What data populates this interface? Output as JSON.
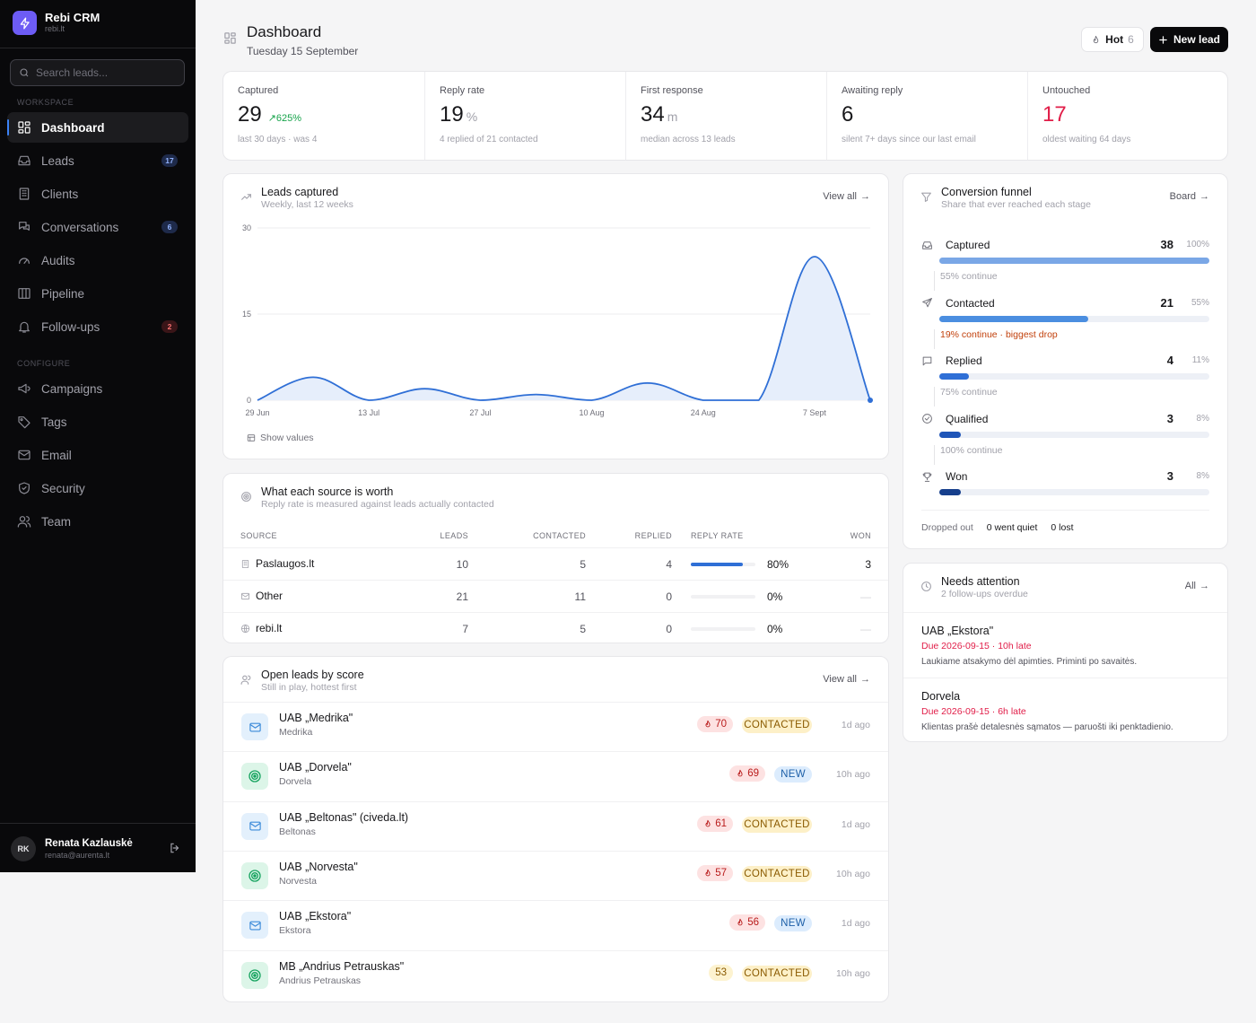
{
  "app": {
    "name": "Rebi CRM",
    "domain": "rebi.lt"
  },
  "search": {
    "placeholder": "Search leads..."
  },
  "sidebar": {
    "workspace_label": "WORKSPACE",
    "configure_label": "CONFIGURE",
    "workspace": [
      {
        "label": "Dashboard",
        "icon": "grid-icon",
        "active": true
      },
      {
        "label": "Leads",
        "icon": "inbox-icon",
        "badge": "17"
      },
      {
        "label": "Clients",
        "icon": "building-icon"
      },
      {
        "label": "Conversations",
        "icon": "chat-icon",
        "badge": "6"
      },
      {
        "label": "Audits",
        "icon": "gauge-icon"
      },
      {
        "label": "Pipeline",
        "icon": "columns-icon"
      },
      {
        "label": "Follow-ups",
        "icon": "bell-icon",
        "badge": "2"
      }
    ],
    "configure": [
      {
        "label": "Campaigns",
        "icon": "megaphone-icon"
      },
      {
        "label": "Tags",
        "icon": "tag-icon"
      },
      {
        "label": "Email",
        "icon": "mail-icon"
      },
      {
        "label": "Security",
        "icon": "shield-icon"
      },
      {
        "label": "Team",
        "icon": "users-icon"
      }
    ]
  },
  "user": {
    "initials": "RK",
    "name": "Renata Kazlauskė",
    "email": "renata@aurenta.lt"
  },
  "header": {
    "title": "Dashboard",
    "date": "Tuesday 15 September",
    "hot_label": "Hot",
    "hot_count": "6",
    "new_lead_label": "New lead"
  },
  "kpis": [
    {
      "label": "Captured",
      "value": "29",
      "trend": "625%",
      "sub": "last 30 days · was 4"
    },
    {
      "label": "Reply rate",
      "value": "19",
      "unit": "%",
      "sub": "4 replied of 21 contacted"
    },
    {
      "label": "First response",
      "value": "34",
      "unit": "m",
      "sub": "median across 13 leads"
    },
    {
      "label": "Awaiting reply",
      "value": "6",
      "sub": "silent 7+ days since our last email"
    },
    {
      "label": "Untouched",
      "value": "17",
      "sub": "oldest waiting 64 days"
    }
  ],
  "leads_chart": {
    "title": "Leads captured",
    "subtitle": "Weekly, last 12 weeks",
    "link": "View all",
    "show_values": "Show values"
  },
  "chart_data": {
    "type": "area",
    "x": [
      "29 Jun",
      "6 Jul",
      "13 Jul",
      "20 Jul",
      "27 Jul",
      "3 Aug",
      "10 Aug",
      "17 Aug",
      "24 Aug",
      "31 Aug",
      "7 Sept",
      "14 Sept"
    ],
    "tick_labels": [
      "29 Jun",
      "13 Jul",
      "27 Jul",
      "10 Aug",
      "24 Aug",
      "7 Sept"
    ],
    "series": [
      {
        "values": [
          0,
          4,
          0,
          2,
          0,
          1,
          0,
          3,
          0,
          0,
          25,
          0
        ]
      }
    ],
    "yticks": [
      0,
      15,
      30
    ],
    "ylim": [
      0,
      30
    ],
    "grid": true,
    "color": "#2f6fd6"
  },
  "funnel": {
    "title": "Conversion funnel",
    "subtitle": "Share that ever reached each stage",
    "link": "Board",
    "stages": [
      {
        "name": "Captured",
        "count": "38",
        "pct": "100%",
        "fill": 1.0,
        "color": "#7aa7e6",
        "icon": "inbox-icon",
        "note": "55% continue",
        "warn": false
      },
      {
        "name": "Contacted",
        "count": "21",
        "pct": "55%",
        "fill": 0.55,
        "color": "#4b8ee0",
        "icon": "send-icon",
        "note": "19% continue · biggest drop",
        "warn": true
      },
      {
        "name": "Replied",
        "count": "4",
        "pct": "11%",
        "fill": 0.11,
        "color": "#2f6fd6",
        "icon": "message-icon",
        "note": "75% continue",
        "warn": false
      },
      {
        "name": "Qualified",
        "count": "3",
        "pct": "8%",
        "fill": 0.08,
        "color": "#1f55b8",
        "icon": "check-circle-icon",
        "note": "100% continue",
        "warn": false
      },
      {
        "name": "Won",
        "count": "3",
        "pct": "8%",
        "fill": 0.08,
        "color": "#163f8c",
        "icon": "trophy-icon",
        "note": "",
        "warn": false
      }
    ],
    "footer": {
      "label": "Dropped out",
      "quiet": "0 went quiet",
      "lost": "0 lost"
    }
  },
  "sources": {
    "title": "What each source is worth",
    "subtitle": "Reply rate is measured against leads actually contacted",
    "headers": [
      "SOURCE",
      "LEADS",
      "CONTACTED",
      "REPLIED",
      "REPLY RATE",
      "WON"
    ],
    "rows": [
      {
        "source": "Paslaugos.lt",
        "icon": "building-icon",
        "leads": "10",
        "contacted": "5",
        "replied": "4",
        "rate": "80%",
        "rate_fill": 0.8,
        "won": "3"
      },
      {
        "source": "Other",
        "icon": "mail-icon",
        "leads": "21",
        "contacted": "11",
        "replied": "0",
        "rate": "0%",
        "rate_fill": 0,
        "won": "—"
      },
      {
        "source": "rebi.lt",
        "icon": "globe-icon",
        "leads": "7",
        "contacted": "5",
        "replied": "0",
        "rate": "0%",
        "rate_fill": 0,
        "won": "—"
      }
    ]
  },
  "open_leads": {
    "title": "Open leads by score",
    "subtitle": "Still in play, hottest first",
    "link": "View all",
    "items": [
      {
        "name": "UAB „Medrika\"",
        "sub": "Medrika",
        "kind": "mail",
        "score": "70",
        "hot": true,
        "status": "CONTACTED",
        "ago": "1d ago"
      },
      {
        "name": "UAB „Dorvela\"",
        "sub": "Dorvela",
        "kind": "target",
        "score": "69",
        "hot": true,
        "status": "NEW",
        "ago": "10h ago"
      },
      {
        "name": "UAB „Beltonas\" (civeda.lt)",
        "sub": "Beltonas",
        "kind": "mail",
        "score": "61",
        "hot": true,
        "status": "CONTACTED",
        "ago": "1d ago"
      },
      {
        "name": "UAB „Norvesta\"",
        "sub": "Norvesta",
        "kind": "target",
        "score": "57",
        "hot": true,
        "status": "CONTACTED",
        "ago": "10h ago"
      },
      {
        "name": "UAB „Ekstora\"",
        "sub": "Ekstora",
        "kind": "mail",
        "score": "56",
        "hot": true,
        "status": "NEW",
        "ago": "1d ago"
      },
      {
        "name": "MB „Andrius Petrauskas\"",
        "sub": "Andrius Petrauskas",
        "kind": "target",
        "score": "53",
        "hot": false,
        "status": "CONTACTED",
        "ago": "10h ago"
      }
    ]
  },
  "attention": {
    "title": "Needs attention",
    "subtitle": "2 follow-ups overdue",
    "link": "All",
    "items": [
      {
        "name": "UAB „Ekstora\"",
        "due": "Due 2026-09-15 · 10h late",
        "note": "Laukiame atsakymo dėl apimties. Priminti po savaitės."
      },
      {
        "name": "Dorvela",
        "due": "Due 2026-09-15 · 6h late",
        "note": "Klientas prašė detalesnės sąmatos — paruošti iki penktadienio."
      }
    ]
  }
}
